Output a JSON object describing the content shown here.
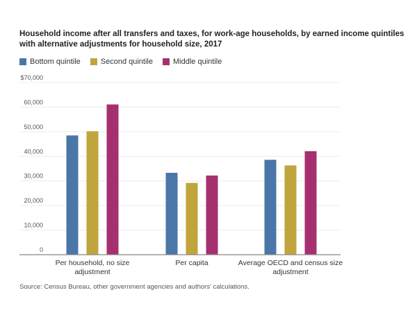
{
  "chart_data": {
    "type": "bar",
    "title": "Household income after all transfers and taxes, for work-age households, by earned income quintiles with alternative adjustments for household size, 2017",
    "categories": [
      "Per household, no size adjustment",
      "Per capita",
      "Average OECD and census size adjustment"
    ],
    "category_lines": [
      [
        "Per household, no size",
        "adjustment"
      ],
      [
        "Per capita"
      ],
      [
        "Average OECD and census size",
        "adjustment"
      ]
    ],
    "series": [
      {
        "name": "Bottom quintile",
        "color": "#4a76a8",
        "values": [
          48500,
          33300,
          38600
        ]
      },
      {
        "name": "Second quintile",
        "color": "#bfa53c",
        "values": [
          50200,
          29200,
          36300
        ]
      },
      {
        "name": "Middle quintile",
        "color": "#a6306f",
        "values": [
          61100,
          32200,
          42100
        ]
      }
    ],
    "ylim": [
      0,
      70000
    ],
    "yticks": [
      0,
      10000,
      20000,
      30000,
      40000,
      50000,
      60000,
      70000
    ],
    "ytick_labels": [
      "0",
      "10,000",
      "20,000",
      "30,000",
      "40,000",
      "50,000",
      "60,000",
      "$70,000"
    ],
    "grid": true,
    "legend_position": "top-left",
    "source": "Source: Census Bureau, other government agencies and authors' calculations."
  }
}
